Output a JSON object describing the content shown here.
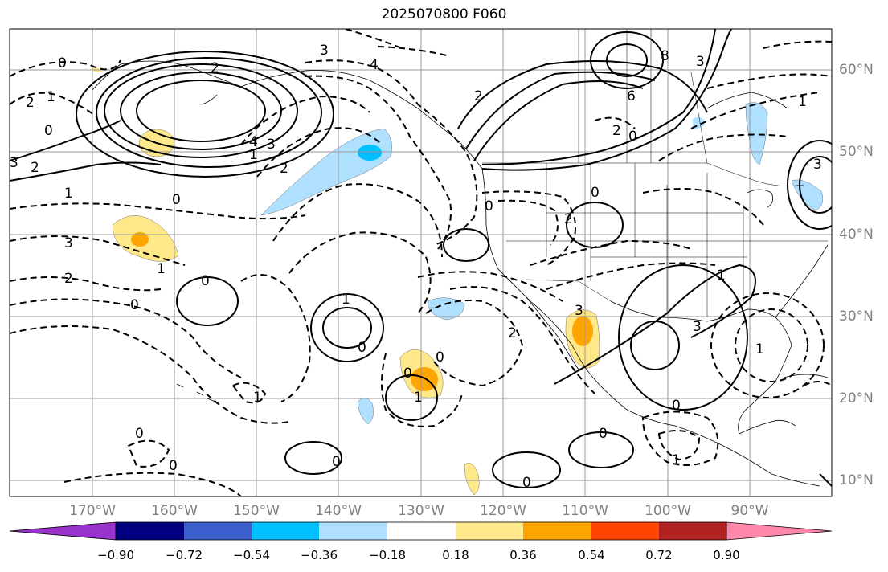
{
  "title": "2025070800 F060",
  "lon_labels": [
    "170°W",
    "160°W",
    "150°W",
    "140°W",
    "130°W",
    "120°W",
    "110°W",
    "100°W",
    "90°W"
  ],
  "lat_labels": [
    "60°N",
    "50°N",
    "40°N",
    "30°N",
    "20°N",
    "10°N"
  ],
  "colorbar": {
    "ticks": [
      "−0.90",
      "−0.72",
      "−0.54",
      "−0.36",
      "−0.18",
      "0.18",
      "0.36",
      "0.54",
      "0.72",
      "0.90"
    ],
    "colors": [
      "#9932cc",
      "#000080",
      "#3a5fcd",
      "#00bfff",
      "#b0e0ff",
      "#ffffff",
      "#ffe88a",
      "#ffa500",
      "#ff4500",
      "#b22222",
      "#ff88aa"
    ]
  },
  "contour_labels": [
    "0",
    "2",
    "1",
    "0",
    "2",
    "3",
    "4",
    "2",
    "3",
    "1",
    "2",
    "1",
    "0",
    "4",
    "3",
    "6",
    "8",
    "3",
    "2",
    "2",
    "0",
    "0",
    "0",
    "3",
    "2",
    "1",
    "0",
    "0",
    "1",
    "3",
    "2",
    "0",
    "0",
    "1",
    "0",
    "1",
    "0",
    "0",
    "2",
    "3",
    "0",
    "1",
    "1",
    "0",
    "0",
    "1",
    "0",
    "3",
    "1"
  ]
}
